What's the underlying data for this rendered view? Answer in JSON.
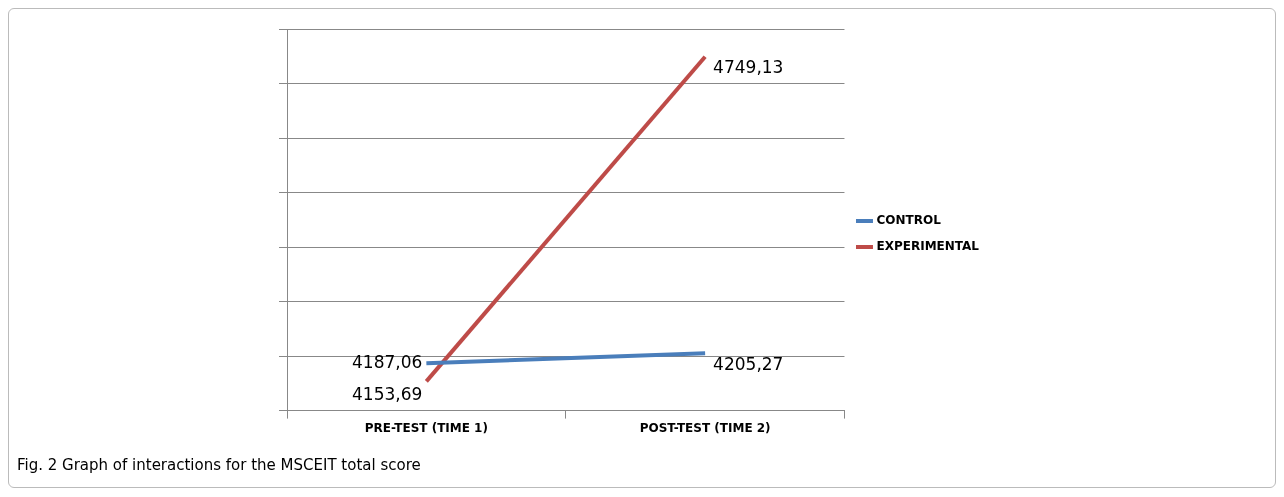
{
  "chart_data": {
    "type": "line",
    "categories": [
      "PRE-TEST (TIME 1)",
      "POST-TEST (TIME 2)"
    ],
    "series": [
      {
        "name": "CONTROL",
        "color": "#4a7ebb",
        "values": [
          4187.06,
          4205.27
        ],
        "value_labels": [
          "4187,06",
          "4205,27"
        ]
      },
      {
        "name": "EXPERIMENTAL",
        "color": "#be4b48",
        "values": [
          4153.69,
          4749.13
        ],
        "value_labels": [
          "4153,69",
          "4749,13"
        ]
      }
    ],
    "ylim": [
      4100,
      4800
    ],
    "yticks": [
      {
        "value": 4100,
        "label": null
      },
      {
        "value": 4200,
        "label": null
      },
      {
        "value": 4300,
        "label": null
      },
      {
        "value": 4400,
        "label": null
      },
      {
        "value": 4500,
        "label": null
      },
      {
        "value": 4600,
        "label": null
      },
      {
        "value": 4700,
        "label": null
      },
      {
        "value": 4800,
        "label": null
      }
    ],
    "grid": "y",
    "legend": "right",
    "marker": "none",
    "line_style": "solid",
    "tick_labels": "x",
    "annotations": [
      "Fig. 2 Graph of interactions for the MSCEIT total score"
    ]
  }
}
